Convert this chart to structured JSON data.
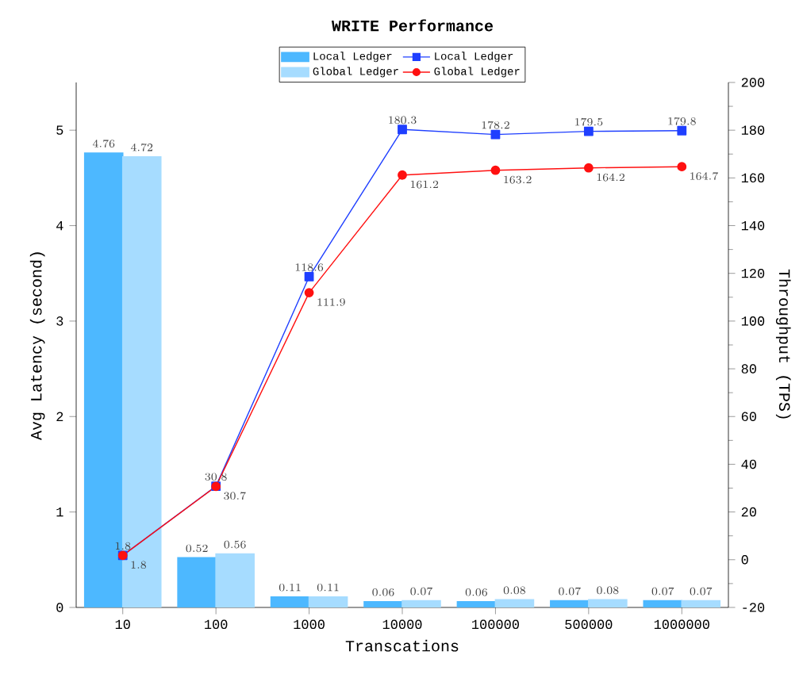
{
  "chart_data": {
    "type": "bar",
    "title": "WRITE Performance",
    "xlabel": "Transcations",
    "ylabel": "Avg Latency (second)",
    "y2label": "Throughput (TPS)",
    "categories": [
      "10",
      "100",
      "1000",
      "10000",
      "100000",
      "500000",
      "1000000"
    ],
    "series": [
      {
        "name": "Local Ledger",
        "color": "#4db8ff",
        "values": [
          4.76,
          0.52,
          0.11,
          0.06,
          0.06,
          0.07,
          0.07
        ]
      },
      {
        "name": "Global Ledger",
        "color": "#a6dcff",
        "values": [
          4.72,
          0.56,
          0.11,
          0.07,
          0.08,
          0.08,
          0.07
        ]
      },
      {
        "name": "Local Ledger",
        "type": "line",
        "axis": "y2",
        "marker": "square",
        "color": "#1f3fff",
        "values": [
          1.8,
          30.8,
          118.6,
          180.3,
          178.2,
          179.5,
          179.8
        ]
      },
      {
        "name": "Global Ledger",
        "type": "line",
        "axis": "y2",
        "marker": "circle",
        "color": "#ff1010",
        "values": [
          1.8,
          30.7,
          111.9,
          161.2,
          163.2,
          164.2,
          164.7
        ]
      }
    ],
    "ylim": [
      0,
      5.5
    ],
    "yticks": [
      0,
      1,
      2,
      3,
      4,
      5
    ],
    "y2lim": [
      -20,
      200
    ],
    "y2ticks": [
      -20,
      0,
      20,
      40,
      60,
      80,
      100,
      120,
      140,
      160,
      180,
      200
    ],
    "data_labels": true,
    "legend": "top",
    "grid": false
  }
}
